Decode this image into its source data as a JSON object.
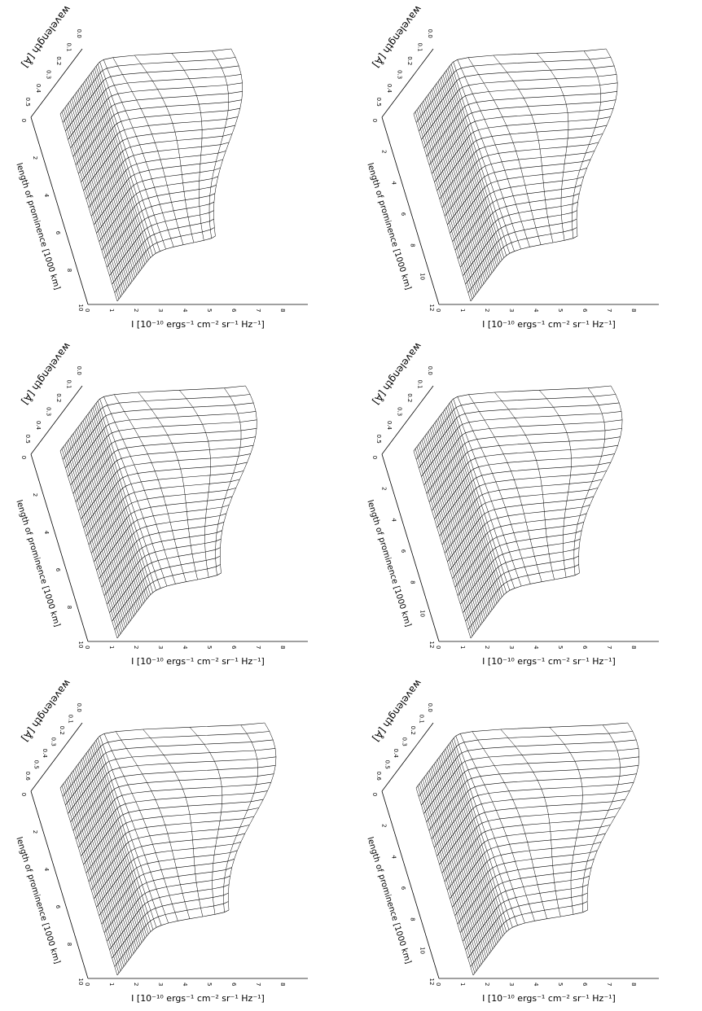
{
  "chart_data": [
    {
      "type": "surface",
      "ylabel": "wavelength [Å]",
      "xlabel": "length of prominence [1000 km]",
      "zlabel": "I [10⁻¹⁰ ergs⁻¹ cm⁻² sr⁻¹ Hz⁻¹]",
      "x_ticks": [
        "0",
        "2",
        "4",
        "6",
        "8",
        "10"
      ],
      "y_ticks": [
        "0.0",
        "0.1",
        "0.2",
        "0.3",
        "0.4",
        "0.5"
      ],
      "z_ticks": [
        "0",
        "1",
        "2",
        "3",
        "4",
        "5",
        "6",
        "7",
        "8"
      ],
      "peak_intensity": 6.2,
      "continuum_intensity": 1.1,
      "peak_wavelength": 0.0
    },
    {
      "type": "surface",
      "ylabel": "wavelength [Å]",
      "xlabel": "length of prominence [1000 km]",
      "zlabel": "I [10⁻¹⁰ ergs⁻¹ cm⁻² sr⁻¹ Hz⁻¹]",
      "x_ticks": [
        "0",
        "2",
        "4",
        "6",
        "8",
        "10"
      ],
      "y_ticks": [
        "0.0",
        "0.1",
        "0.2",
        "0.3",
        "0.4",
        "0.5"
      ],
      "z_ticks": [
        "0",
        "1",
        "2",
        "3",
        "4",
        "5",
        "6",
        "7",
        "8"
      ],
      "peak_intensity": 6.8,
      "continuum_intensity": 1.1,
      "peak_wavelength": 0.0
    },
    {
      "type": "surface",
      "ylabel": "wavelength [Å]",
      "xlabel": "length of prominence [1000 km]",
      "zlabel": "I [10⁻¹⁰ ergs⁻¹ cm⁻² sr⁻¹ Hz⁻¹]",
      "x_ticks": [
        "0",
        "2",
        "4",
        "6",
        "8",
        "10"
      ],
      "y_ticks": [
        "0.0",
        "0.1",
        "0.2",
        "0.3",
        "0.4",
        "0.5",
        "0.6"
      ],
      "z_ticks": [
        "0",
        "1",
        "2",
        "3",
        "4",
        "5",
        "6",
        "7",
        "8"
      ],
      "peak_intensity": 7.6,
      "continuum_intensity": 1.1,
      "peak_wavelength": 0.0
    },
    {
      "type": "surface",
      "ylabel": "wavelength [Å]",
      "xlabel": "length of prominence [1000 km]",
      "zlabel": "I [10⁻¹⁰ ergs⁻¹ cm⁻² sr⁻¹ Hz⁻¹]",
      "x_ticks": [
        "0",
        "2",
        "4",
        "6",
        "8",
        "10",
        "12"
      ],
      "y_ticks": [
        "0.0",
        "0.1",
        "0.2",
        "0.3",
        "0.4",
        "0.5"
      ],
      "z_ticks": [
        "0",
        "1",
        "2",
        "3",
        "4",
        "5",
        "6",
        "7",
        "8"
      ],
      "peak_intensity": 7.2,
      "continuum_intensity": 1.2,
      "peak_wavelength": 0.0
    },
    {
      "type": "surface",
      "ylabel": "wavelength [Å]",
      "xlabel": "length of prominence [1000 km]",
      "zlabel": "I [10⁻¹⁰ ergs⁻¹ cm⁻² sr⁻¹ Hz⁻¹]",
      "x_ticks": [
        "0",
        "2",
        "4",
        "6",
        "8",
        "10",
        "12"
      ],
      "y_ticks": [
        "0.0",
        "0.1",
        "0.2",
        "0.3",
        "0.4",
        "0.5"
      ],
      "z_ticks": [
        "0",
        "1",
        "2",
        "3",
        "4",
        "5",
        "6",
        "7",
        "8"
      ],
      "peak_intensity": 7.4,
      "continuum_intensity": 1.2,
      "peak_wavelength": 0.0
    },
    {
      "type": "surface",
      "ylabel": "wavelength [Å]",
      "xlabel": "length of prominence [1000 km]",
      "zlabel": "I [10⁻¹⁰ ergs⁻¹ cm⁻² sr⁻¹ Hz⁻¹]",
      "x_ticks": [
        "0",
        "2",
        "4",
        "6",
        "8",
        "10",
        "12"
      ],
      "y_ticks": [
        "0.0",
        "0.1",
        "0.2",
        "0.3",
        "0.4",
        "0.5",
        "0.6"
      ],
      "z_ticks": [
        "0",
        "1",
        "2",
        "3",
        "4",
        "5",
        "6",
        "7",
        "8"
      ],
      "peak_intensity": 8.1,
      "continuum_intensity": 1.3,
      "peak_wavelength": 0.0
    }
  ]
}
